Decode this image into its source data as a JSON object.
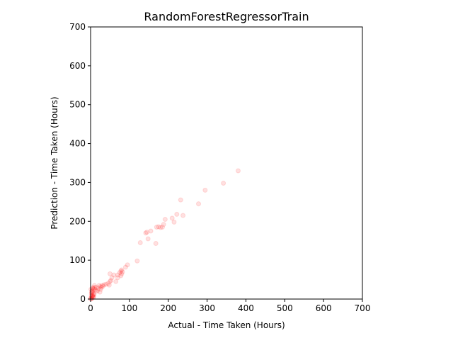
{
  "chart_data": {
    "type": "scatter",
    "title": "RandomForestRegressorTrain",
    "xlabel": "Actual - Time Taken (Hours)",
    "ylabel": "Prediction - Time Taken (Hours)",
    "xlim": [
      0,
      700
    ],
    "ylim": [
      0,
      700
    ],
    "xticks": [
      0,
      100,
      200,
      300,
      400,
      500,
      600,
      700
    ],
    "yticks": [
      0,
      100,
      200,
      300,
      400,
      500,
      600,
      700
    ],
    "grid": false,
    "legend": "none",
    "marker_color": "#ff0000",
    "marker_alpha": 0.12,
    "x": [
      0,
      1,
      2,
      3,
      4,
      5,
      6,
      7,
      8,
      9,
      2,
      3,
      5,
      8,
      1,
      4,
      6,
      10,
      2,
      5,
      3,
      12,
      15,
      8,
      20,
      18,
      25,
      22,
      28,
      30,
      24,
      26,
      35,
      40,
      32,
      45,
      48,
      50,
      52,
      55,
      60,
      65,
      70,
      75,
      78,
      80,
      80,
      78,
      82,
      90,
      95,
      120,
      128,
      142,
      145,
      148,
      155,
      168,
      170,
      175,
      180,
      185,
      188,
      192,
      210,
      215,
      222,
      232,
      238,
      278,
      295,
      342,
      380,
      10,
      5,
      14,
      70,
      50
    ],
    "y": [
      0,
      2,
      5,
      1,
      3,
      8,
      10,
      4,
      6,
      12,
      15,
      20,
      18,
      14,
      25,
      22,
      28,
      30,
      9,
      7,
      16,
      24,
      20,
      26,
      28,
      22,
      32,
      35,
      30,
      35,
      18,
      25,
      37,
      38,
      33,
      40,
      36,
      45,
      48,
      55,
      62,
      45,
      62,
      68,
      72,
      75,
      65,
      60,
      70,
      82,
      88,
      98,
      145,
      170,
      172,
      155,
      175,
      143,
      185,
      186,
      184,
      185,
      192,
      205,
      208,
      198,
      218,
      255,
      215,
      245,
      280,
      298,
      330,
      35,
      29,
      30,
      55,
      65
    ]
  }
}
